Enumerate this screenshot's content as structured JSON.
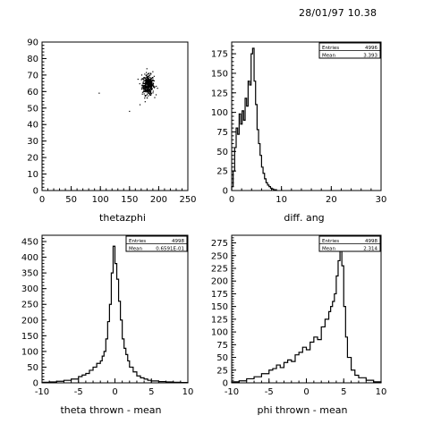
{
  "header": {
    "datestamp": "28/01/97   10.38"
  },
  "chart_data": [
    {
      "type": "scatter",
      "title": "thetazphi",
      "xlim": [
        0,
        250
      ],
      "ylim": [
        0,
        90
      ],
      "xticks": [
        0,
        50,
        100,
        150,
        200,
        250
      ],
      "yticks": [
        0,
        10,
        20,
        30,
        40,
        50,
        60,
        70,
        80,
        90
      ],
      "xtick_labels": [
        "0",
        "50",
        "100",
        "150",
        "200",
        "250"
      ],
      "ytick_labels": [
        "0",
        "10",
        "20",
        "30",
        "40",
        "50",
        "60",
        "70",
        "80",
        "90"
      ],
      "cluster": {
        "x_center": 182,
        "y_center": 64,
        "x_spread": 5,
        "y_spread": 3
      },
      "outliers": [
        [
          98,
          59
        ],
        [
          150,
          48
        ],
        [
          168,
          52
        ],
        [
          185,
          58
        ],
        [
          198,
          62
        ],
        [
          171,
          70
        ],
        [
          190,
          72
        ],
        [
          176,
          56
        ]
      ]
    },
    {
      "type": "histogram",
      "title": "diff. ang",
      "xlim": [
        0,
        30
      ],
      "ylim": [
        0,
        190
      ],
      "xticks": [
        0,
        10,
        20,
        30
      ],
      "yticks": [
        0,
        25,
        50,
        75,
        100,
        125,
        150,
        175
      ],
      "xtick_labels": [
        "0",
        "10",
        "20",
        "30"
      ],
      "ytick_labels": [
        "0",
        "25",
        "50",
        "75",
        "100",
        "125",
        "150",
        "175"
      ],
      "stats": {
        "entries_label": "Entries",
        "entries_value": "4996",
        "mean_label": "Mean",
        "mean_value": "3.393"
      },
      "bin_edges": [
        0,
        0.3,
        0.6,
        0.9,
        1.2,
        1.5,
        1.8,
        2.1,
        2.4,
        2.7,
        3.0,
        3.3,
        3.6,
        3.9,
        4.2,
        4.5,
        4.8,
        5.1,
        5.4,
        5.7,
        6.0,
        6.3,
        6.6,
        6.9,
        7.2,
        7.5,
        7.8,
        8.1,
        8.4,
        8.7,
        9.0
      ],
      "counts": [
        5,
        25,
        55,
        80,
        72,
        98,
        85,
        102,
        90,
        118,
        108,
        140,
        135,
        175,
        182,
        140,
        110,
        78,
        60,
        45,
        30,
        22,
        15,
        10,
        7,
        5,
        3,
        2,
        1,
        1
      ]
    },
    {
      "type": "histogram",
      "title": "theta thrown - mean",
      "xlim": [
        -10,
        10
      ],
      "ylim": [
        0,
        470
      ],
      "xticks": [
        -10,
        -5,
        0,
        5,
        10
      ],
      "yticks": [
        0,
        50,
        100,
        150,
        200,
        250,
        300,
        350,
        400,
        450
      ],
      "xtick_labels": [
        "-10",
        "-5",
        "0",
        "5",
        "10"
      ],
      "ytick_labels": [
        "0",
        "50",
        "100",
        "150",
        "200",
        "250",
        "300",
        "350",
        "400",
        "450"
      ],
      "stats": {
        "entries_label": "Entries",
        "entries_value": "4998",
        "mean_label": "Mean",
        "mean_value": "0.6591E-01"
      },
      "bin_edges": [
        -10,
        -9,
        -8,
        -7,
        -6,
        -5,
        -4.5,
        -4,
        -3.5,
        -3,
        -2.5,
        -2,
        -1.75,
        -1.5,
        -1.25,
        -1,
        -0.75,
        -0.5,
        -0.25,
        0,
        0.25,
        0.5,
        0.75,
        1,
        1.25,
        1.5,
        1.75,
        2,
        2.5,
        3,
        3.5,
        4,
        4.5,
        5,
        6,
        7,
        8,
        9,
        10
      ],
      "counts": [
        2,
        3,
        5,
        8,
        12,
        20,
        25,
        30,
        40,
        50,
        62,
        70,
        85,
        100,
        140,
        195,
        250,
        350,
        435,
        380,
        330,
        260,
        200,
        140,
        110,
        90,
        70,
        50,
        35,
        22,
        16,
        12,
        8,
        6,
        4,
        3,
        2,
        1
      ]
    },
    {
      "type": "histogram",
      "title": "phi thrown - mean",
      "xlim": [
        -10,
        10
      ],
      "ylim": [
        0,
        290
      ],
      "xticks": [
        -10,
        -5,
        0,
        5,
        10
      ],
      "yticks": [
        0,
        25,
        50,
        75,
        100,
        125,
        150,
        175,
        200,
        225,
        250,
        275
      ],
      "xtick_labels": [
        "-10",
        "-5",
        "0",
        "5",
        "10"
      ],
      "ytick_labels": [
        "0",
        "25",
        "50",
        "75",
        "100",
        "125",
        "150",
        "175",
        "200",
        "225",
        "250",
        "275"
      ],
      "stats": {
        "entries_label": "Entries",
        "entries_value": "4998",
        "mean_label": "Mean",
        "mean_value": "2.314"
      },
      "bin_edges": [
        -10,
        -9,
        -8,
        -7,
        -6,
        -5,
        -4.5,
        -4,
        -3.5,
        -3,
        -2.5,
        -2,
        -1.5,
        -1,
        -0.5,
        0,
        0.5,
        1,
        1.5,
        2,
        2.5,
        3,
        3.25,
        3.5,
        3.75,
        4,
        4.25,
        4.5,
        4.75,
        5,
        5.25,
        5.5,
        6,
        6.5,
        7,
        8,
        9,
        10
      ],
      "counts": [
        2,
        4,
        8,
        12,
        18,
        25,
        28,
        35,
        30,
        40,
        45,
        42,
        55,
        60,
        70,
        65,
        80,
        90,
        85,
        110,
        125,
        140,
        150,
        160,
        175,
        210,
        240,
        280,
        230,
        150,
        90,
        50,
        25,
        15,
        10,
        5,
        2
      ]
    }
  ]
}
